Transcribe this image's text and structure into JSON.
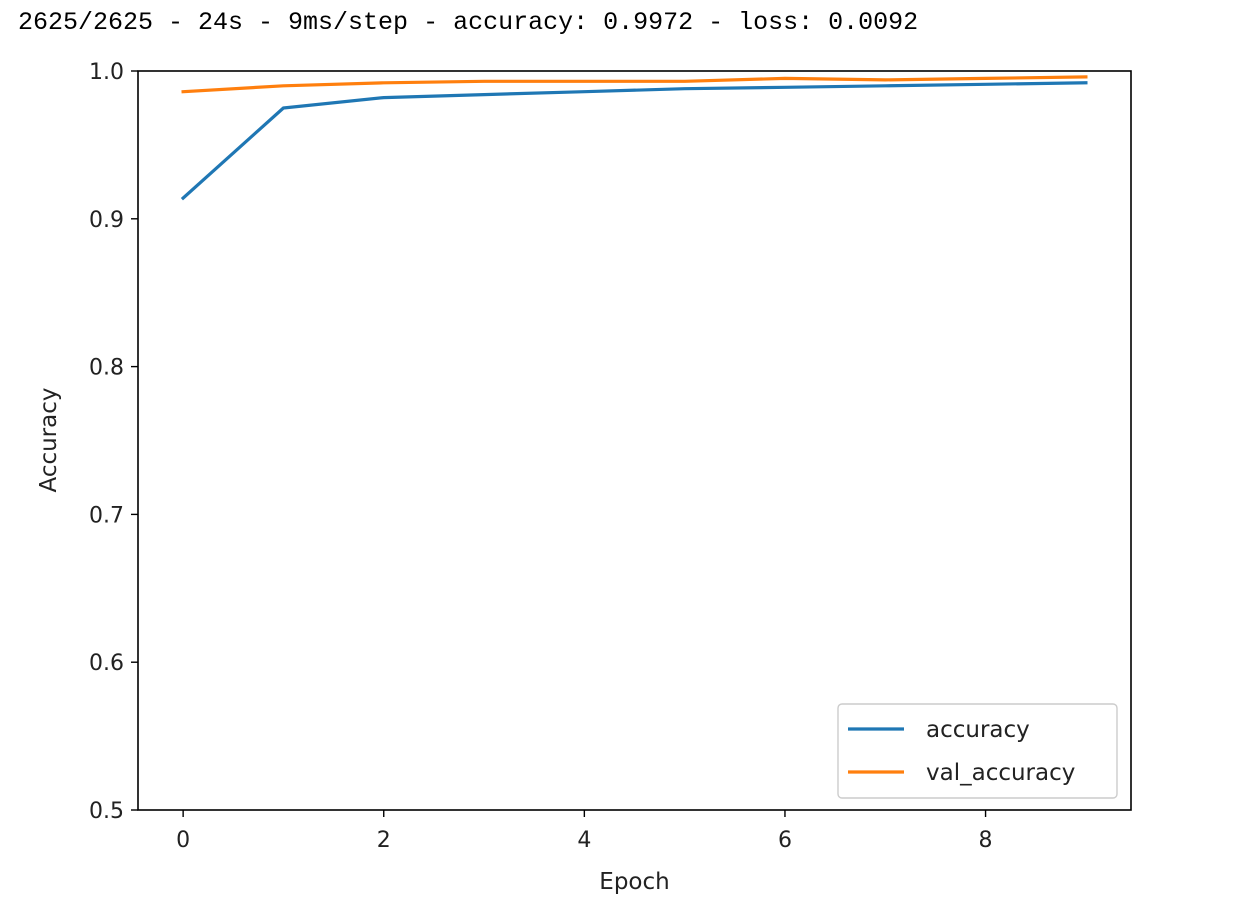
{
  "console": {
    "output": "2625/2625 - 24s - 9ms/step - accuracy: 0.9972 - loss: 0.0092"
  },
  "chart_data": {
    "type": "line",
    "xlabel": "Epoch",
    "ylabel": "Accuracy",
    "xlim": [
      -0.45,
      9.45
    ],
    "ylim": [
      0.5,
      1.0
    ],
    "x_ticks": [
      0,
      2,
      4,
      6,
      8
    ],
    "y_ticks": [
      0.5,
      0.6,
      0.7,
      0.8,
      0.9,
      1.0
    ],
    "x_tick_labels": [
      "0",
      "2",
      "4",
      "6",
      "8"
    ],
    "y_tick_labels": [
      "0.5",
      "0.6",
      "0.7",
      "0.8",
      "0.9",
      "1.0"
    ],
    "grid": false,
    "legend_position": "lower-right",
    "x": [
      0,
      1,
      2,
      3,
      4,
      5,
      6,
      7,
      8,
      9
    ],
    "series": [
      {
        "name": "accuracy",
        "color": "#1f77b4",
        "values": [
          0.914,
          0.975,
          0.982,
          0.984,
          0.986,
          0.988,
          0.989,
          0.99,
          0.991,
          0.992
        ]
      },
      {
        "name": "val_accuracy",
        "color": "#ff7f0e",
        "values": [
          0.986,
          0.99,
          0.992,
          0.993,
          0.993,
          0.993,
          0.995,
          0.994,
          0.995,
          0.996
        ]
      }
    ]
  }
}
